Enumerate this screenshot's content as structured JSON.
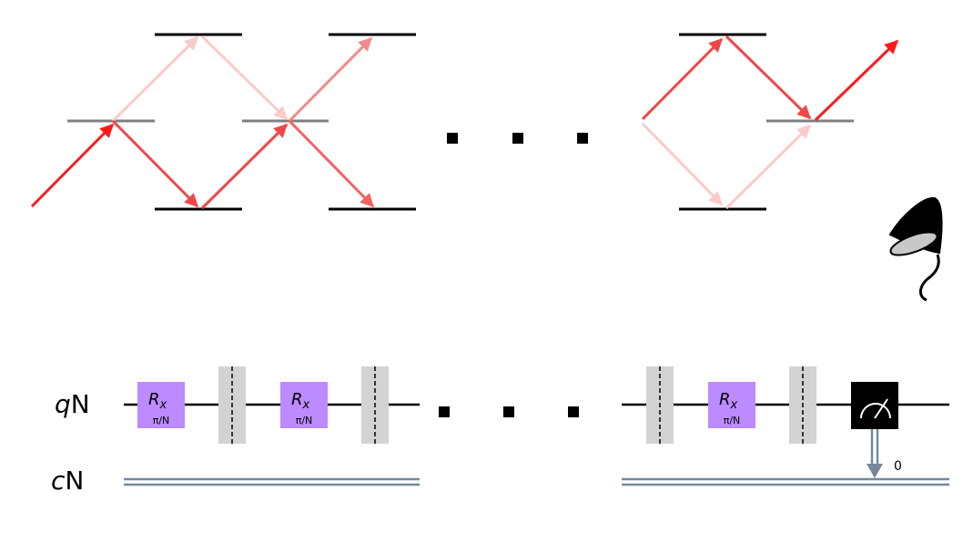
{
  "energy_diagram": {
    "colors": {
      "ground": "#000000",
      "mid": "#808080",
      "strong": "#ff1a1a",
      "medium": "#f04848",
      "soft": "#f48a8a",
      "faint": "#fbcaca"
    },
    "ellipsis": "· · ·"
  },
  "circuit": {
    "qubit_label_italic": "q",
    "qubit_label_suffix": "N",
    "clbit_label_italic": "c",
    "clbit_label_suffix": "N",
    "gates": [
      {
        "name": "R",
        "sub": "x",
        "param": "π/N"
      },
      {
        "name": "R",
        "sub": "x",
        "param": "π/N"
      },
      {
        "name": "R",
        "sub": "x",
        "param": "π/N"
      }
    ],
    "measure_bit_index": "0",
    "colors": {
      "gate_fill": "#bb8bff",
      "barrier_fill": "#d3d3d3",
      "measure_fill": "#000000",
      "classical_wire": "#778899"
    }
  },
  "detector_icon": "detector-cone-icon"
}
